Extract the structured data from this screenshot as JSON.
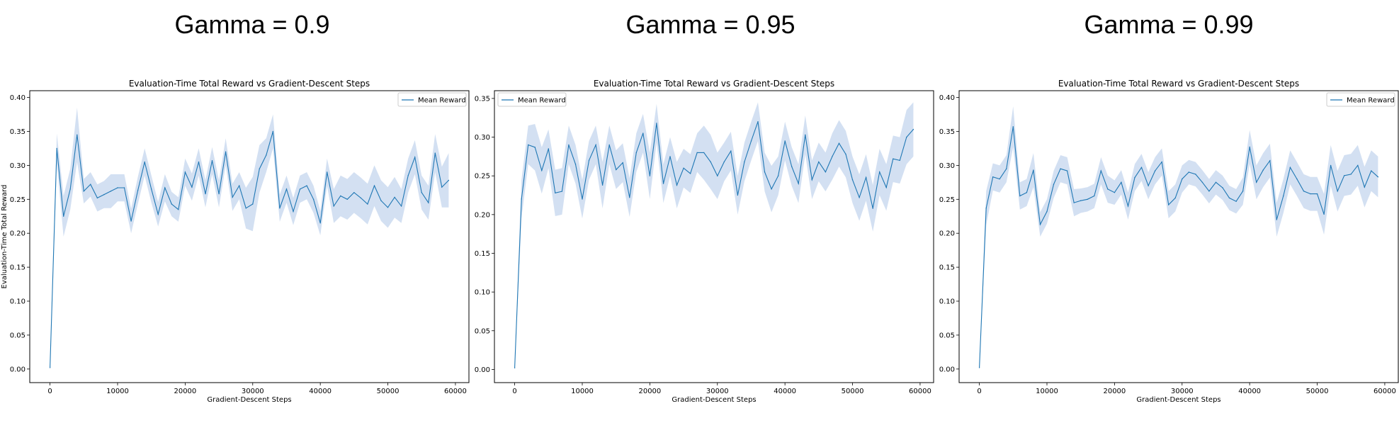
{
  "panel_headings": [
    "Gamma = 0.9",
    "Gamma = 0.95",
    "Gamma = 0.99"
  ],
  "colors": {
    "line": "#1f77b4",
    "band": "#aec7e8",
    "axis": "#000000"
  },
  "chart_data": [
    {
      "type": "line",
      "title": "Evaluation-Time Total Reward vs Gradient-Descent Steps",
      "xlabel": "Gradient-Descent Steps",
      "ylabel": "Evaluation-Time Total Reward",
      "xlim": [
        -3000,
        62000
      ],
      "ylim": [
        -0.02,
        0.41
      ],
      "xticks": [
        0,
        10000,
        20000,
        30000,
        40000,
        50000,
        60000
      ],
      "yticks": [
        0.0,
        0.05,
        0.1,
        0.15,
        0.2,
        0.25,
        0.3,
        0.35,
        0.4
      ],
      "ytick_labels": [
        "0.00",
        "0.05",
        "0.10",
        "0.15",
        "0.20",
        "0.25",
        "0.30",
        "0.35",
        "0.40"
      ],
      "legend": {
        "entries": [
          "Mean Reward"
        ],
        "position": "upper right"
      },
      "grid": false,
      "series": [
        {
          "name": "Mean Reward",
          "x": [
            0,
            1000,
            2000,
            3000,
            4000,
            5000,
            6000,
            7000,
            8000,
            9000,
            10000,
            11000,
            12000,
            13000,
            14000,
            15000,
            16000,
            17000,
            18000,
            19000,
            20000,
            21000,
            22000,
            23000,
            24000,
            25000,
            26000,
            27000,
            28000,
            29000,
            30000,
            31000,
            32000,
            33000,
            34000,
            35000,
            36000,
            37000,
            38000,
            39000,
            40000,
            41000,
            42000,
            43000,
            44000,
            45000,
            46000,
            47000,
            48000,
            49000,
            50000,
            51000,
            52000,
            53000,
            54000,
            55000,
            56000,
            57000,
            58000,
            59000
          ],
          "y": [
            0.002,
            0.325,
            0.225,
            0.265,
            0.345,
            0.262,
            0.272,
            0.252,
            0.257,
            0.262,
            0.267,
            0.267,
            0.218,
            0.263,
            0.305,
            0.265,
            0.228,
            0.267,
            0.243,
            0.235,
            0.29,
            0.268,
            0.305,
            0.258,
            0.307,
            0.258,
            0.32,
            0.253,
            0.27,
            0.237,
            0.243,
            0.295,
            0.315,
            0.35,
            0.237,
            0.265,
            0.232,
            0.265,
            0.27,
            0.25,
            0.215,
            0.29,
            0.24,
            0.255,
            0.25,
            0.26,
            0.252,
            0.243,
            0.27,
            0.248,
            0.238,
            0.253,
            0.24,
            0.285,
            0.312,
            0.26,
            0.245,
            0.318,
            0.268,
            0.278
          ],
          "band": [
            0.002,
            0.022,
            0.03,
            0.03,
            0.04,
            0.018,
            0.018,
            0.02,
            0.02,
            0.025,
            0.02,
            0.02,
            0.018,
            0.02,
            0.02,
            0.02,
            0.018,
            0.02,
            0.018,
            0.018,
            0.02,
            0.02,
            0.02,
            0.02,
            0.02,
            0.02,
            0.02,
            0.02,
            0.02,
            0.03,
            0.04,
            0.035,
            0.025,
            0.025,
            0.02,
            0.02,
            0.02,
            0.02,
            0.02,
            0.02,
            0.018,
            0.02,
            0.025,
            0.03,
            0.03,
            0.03,
            0.03,
            0.03,
            0.03,
            0.03,
            0.03,
            0.03,
            0.025,
            0.025,
            0.025,
            0.025,
            0.025,
            0.028,
            0.03,
            0.04
          ]
        }
      ]
    },
    {
      "type": "line",
      "title": "Evaluation-Time Total Reward vs Gradient-Descent Steps",
      "xlabel": "Gradient-Descent Steps",
      "ylabel": "",
      "xlim": [
        -3000,
        62000
      ],
      "ylim": [
        -0.017,
        0.36
      ],
      "xticks": [
        0,
        10000,
        20000,
        30000,
        40000,
        50000,
        60000
      ],
      "yticks": [
        0.0,
        0.05,
        0.1,
        0.15,
        0.2,
        0.25,
        0.3,
        0.35
      ],
      "ytick_labels": [
        "0.00",
        "0.05",
        "0.10",
        "0.15",
        "0.20",
        "0.25",
        "0.30",
        "0.35"
      ],
      "legend": {
        "entries": [
          "Mean Reward"
        ],
        "position": "upper left"
      },
      "grid": false,
      "series": [
        {
          "name": "Mean Reward",
          "x": [
            0,
            1000,
            2000,
            3000,
            4000,
            5000,
            6000,
            7000,
            8000,
            9000,
            10000,
            11000,
            12000,
            13000,
            14000,
            15000,
            16000,
            17000,
            18000,
            19000,
            20000,
            21000,
            22000,
            23000,
            24000,
            25000,
            26000,
            27000,
            28000,
            29000,
            30000,
            31000,
            32000,
            33000,
            34000,
            35000,
            36000,
            37000,
            38000,
            39000,
            40000,
            41000,
            42000,
            43000,
            44000,
            45000,
            46000,
            47000,
            48000,
            49000,
            50000,
            51000,
            52000,
            53000,
            54000,
            55000,
            56000,
            57000,
            58000,
            59000
          ],
          "y": [
            0.002,
            0.22,
            0.29,
            0.287,
            0.257,
            0.285,
            0.228,
            0.23,
            0.29,
            0.265,
            0.22,
            0.27,
            0.29,
            0.238,
            0.29,
            0.258,
            0.267,
            0.222,
            0.28,
            0.305,
            0.25,
            0.318,
            0.24,
            0.275,
            0.238,
            0.26,
            0.253,
            0.28,
            0.28,
            0.268,
            0.25,
            0.268,
            0.282,
            0.225,
            0.268,
            0.295,
            0.32,
            0.255,
            0.233,
            0.25,
            0.295,
            0.262,
            0.24,
            0.303,
            0.245,
            0.268,
            0.255,
            0.275,
            0.292,
            0.278,
            0.245,
            0.222,
            0.248,
            0.208,
            0.255,
            0.235,
            0.272,
            0.27,
            0.3,
            0.31
          ],
          "band": [
            0.002,
            0.025,
            0.025,
            0.03,
            0.03,
            0.025,
            0.03,
            0.03,
            0.025,
            0.025,
            0.025,
            0.025,
            0.025,
            0.03,
            0.025,
            0.025,
            0.025,
            0.025,
            0.025,
            0.025,
            0.03,
            0.025,
            0.025,
            0.025,
            0.03,
            0.025,
            0.025,
            0.025,
            0.035,
            0.035,
            0.03,
            0.025,
            0.025,
            0.025,
            0.025,
            0.025,
            0.025,
            0.025,
            0.03,
            0.025,
            0.025,
            0.025,
            0.025,
            0.025,
            0.025,
            0.025,
            0.025,
            0.03,
            0.03,
            0.03,
            0.03,
            0.03,
            0.03,
            0.03,
            0.03,
            0.03,
            0.03,
            0.03,
            0.035,
            0.035
          ]
        }
      ]
    },
    {
      "type": "line",
      "title": "Evaluation-Time Total Reward vs Gradient-Descent Steps",
      "xlabel": "Gradient-Descent Steps",
      "ylabel": "",
      "xlim": [
        -3000,
        62000
      ],
      "ylim": [
        -0.02,
        0.41
      ],
      "xticks": [
        0,
        10000,
        20000,
        30000,
        40000,
        50000,
        60000
      ],
      "yticks": [
        0.0,
        0.05,
        0.1,
        0.15,
        0.2,
        0.25,
        0.3,
        0.35,
        0.4
      ],
      "ytick_labels": [
        "0.00",
        "0.05",
        "0.10",
        "0.15",
        "0.20",
        "0.25",
        "0.30",
        "0.35",
        "0.40"
      ],
      "legend": {
        "entries": [
          "Mean Reward"
        ],
        "position": "upper right"
      },
      "grid": false,
      "series": [
        {
          "name": "Mean Reward",
          "x": [
            0,
            1000,
            2000,
            3000,
            4000,
            5000,
            6000,
            7000,
            8000,
            9000,
            10000,
            11000,
            12000,
            13000,
            14000,
            15000,
            16000,
            17000,
            18000,
            19000,
            20000,
            21000,
            22000,
            23000,
            24000,
            25000,
            26000,
            27000,
            28000,
            29000,
            30000,
            31000,
            32000,
            33000,
            34000,
            35000,
            36000,
            37000,
            38000,
            39000,
            40000,
            41000,
            42000,
            43000,
            44000,
            45000,
            46000,
            47000,
            48000,
            49000,
            50000,
            51000,
            52000,
            53000,
            54000,
            55000,
            56000,
            57000,
            58000,
            59000
          ],
          "y": [
            0.002,
            0.237,
            0.283,
            0.28,
            0.295,
            0.357,
            0.255,
            0.26,
            0.293,
            0.213,
            0.232,
            0.272,
            0.295,
            0.292,
            0.245,
            0.248,
            0.25,
            0.255,
            0.292,
            0.265,
            0.26,
            0.275,
            0.24,
            0.282,
            0.297,
            0.27,
            0.292,
            0.305,
            0.242,
            0.252,
            0.28,
            0.29,
            0.287,
            0.275,
            0.262,
            0.275,
            0.267,
            0.252,
            0.247,
            0.262,
            0.327,
            0.275,
            0.293,
            0.307,
            0.22,
            0.255,
            0.297,
            0.28,
            0.262,
            0.258,
            0.258,
            0.228,
            0.3,
            0.262,
            0.285,
            0.287,
            0.3,
            0.268,
            0.292,
            0.283
          ],
          "band": [
            0.002,
            0.025,
            0.02,
            0.02,
            0.02,
            0.03,
            0.02,
            0.02,
            0.025,
            0.018,
            0.018,
            0.02,
            0.02,
            0.02,
            0.02,
            0.018,
            0.018,
            0.018,
            0.02,
            0.02,
            0.018,
            0.018,
            0.02,
            0.02,
            0.02,
            0.02,
            0.02,
            0.02,
            0.02,
            0.02,
            0.02,
            0.018,
            0.018,
            0.018,
            0.018,
            0.018,
            0.018,
            0.018,
            0.018,
            0.02,
            0.025,
            0.025,
            0.025,
            0.025,
            0.025,
            0.025,
            0.025,
            0.025,
            0.025,
            0.025,
            0.025,
            0.03,
            0.03,
            0.03,
            0.03,
            0.03,
            0.03,
            0.03,
            0.03,
            0.03
          ]
        }
      ]
    }
  ]
}
